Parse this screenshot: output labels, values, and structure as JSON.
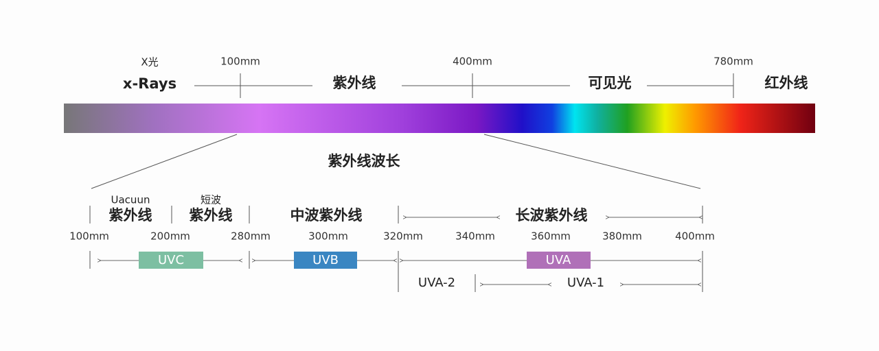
{
  "top_labels": {
    "xray_cn": "X光",
    "xray": "x-Rays",
    "uv": "紫外线",
    "visible": "可见光",
    "infrared": "红外线"
  },
  "top_wavelengths": [
    "100mm",
    "400mm",
    "780mm"
  ],
  "title": "紫外线波长",
  "bands": [
    {
      "top": "Uacuun",
      "name": "紫外线"
    },
    {
      "top": "短波",
      "name": "紫外线"
    },
    {
      "name": "中波紫外线"
    },
    {
      "name": "长波紫外线"
    }
  ],
  "wavelengths": [
    "100mm",
    "200mm",
    "280mm",
    "300mm",
    "320mm",
    "340mm",
    "360mm",
    "380mm",
    "400mm"
  ],
  "badges": [
    "UVC",
    "UVB",
    "UVA"
  ],
  "sub_bands": [
    "UVA-2",
    "UVA-1"
  ]
}
